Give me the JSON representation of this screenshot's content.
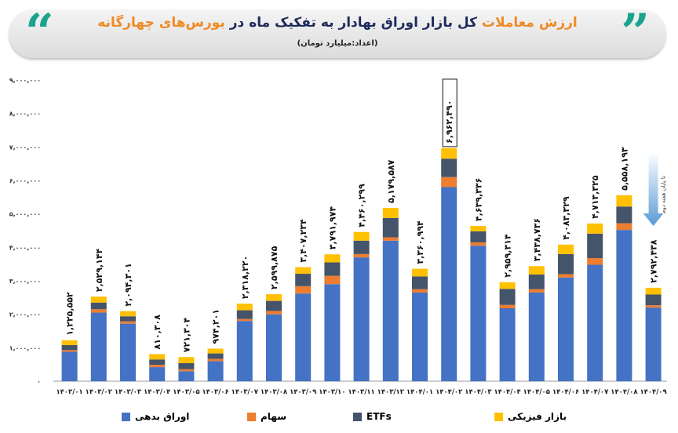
{
  "header": {
    "title_a": "ارزش معاملات",
    "title_b": "کل بازار اوراق بهادار به تفکیک ماه در",
    "title_c": "بورس‌های چهارگانه",
    "subtitle": "(اعداد:میلیارد تومان)",
    "quote_left": "“",
    "quote_right": "”"
  },
  "annotation": "تا پایان هفته دوم",
  "chart_data": {
    "type": "bar",
    "stacked": true,
    "title": "ارزش معاملات کل بازار اوراق بهادار به تفکیک ماه در بورس‌های چهارگانه",
    "unit": "میلیارد تومان",
    "ylim": [
      0,
      9000000
    ],
    "yticks": [
      "۰",
      "۱,۰۰۰,۰۰۰",
      "۲,۰۰۰,۰۰۰",
      "۳,۰۰۰,۰۰۰",
      "۴,۰۰۰,۰۰۰",
      "۵,۰۰۰,۰۰۰",
      "۶,۰۰۰,۰۰۰",
      "۷,۰۰۰,۰۰۰",
      "۸,۰۰۰,۰۰۰",
      "۹,۰۰۰,۰۰۰"
    ],
    "categories": [
      "۱۴۰۳/۰۱",
      "۱۴۰۳/۰۲",
      "۱۴۰۳/۰۳",
      "۱۴۰۳/۰۴",
      "۱۴۰۳/۰۵",
      "۱۴۰۳/۰۶",
      "۱۴۰۳/۰۷",
      "۱۴۰۳/۰۸",
      "۱۴۰۳/۰۹",
      "۱۴۰۳/۱۰",
      "۱۴۰۳/۱۱",
      "۱۴۰۳/۱۲",
      "۱۴۰۴/۰۱",
      "۱۴۰۴/۰۲",
      "۱۴۰۴/۰۳",
      "۱۴۰۴/۰۴",
      "۱۴۰۴/۰۵",
      "۱۴۰۴/۰۶",
      "۱۴۰۴/۰۷",
      "۱۴۰۴/۰۸",
      "۱۴۰۴/۰۹"
    ],
    "totals": [
      1225552,
      2529144,
      2094301,
      810308,
      721304,
      974201,
      2318220,
      2599875,
      3407234,
      3791974,
      4460299,
      5179587,
      3360994,
      6962490,
      4639336,
      2959314,
      3438736,
      4083329,
      4713325,
      5558193,
      2792438
    ],
    "total_labels": [
      "۱,۲۲۵,۵۵۲",
      "۲,۵۲۹,۱۴۴",
      "۲,۰۹۴,۳۰۱",
      "۸۱۰,۳۰۸",
      "۷۲۱,۳۰۴",
      "۹۷۴,۲۰۱",
      "۲,۳۱۸,۲۲۰",
      "۲,۵۹۹,۸۷۵",
      "۳,۴۰۷,۲۳۴",
      "۳,۷۹۱,۹۷۴",
      "۴,۴۶۰,۲۹۹",
      "۵,۱۷۹,۵۸۷",
      "۳,۳۶۰,۹۹۴",
      "۶,۹۶۲,۴۹۰",
      "۴,۶۳۹,۳۳۶",
      "۲,۹۵۹,۳۱۴",
      "۳,۴۳۸,۷۳۶",
      "۴,۰۸۳,۳۲۹",
      "۴,۷۱۳,۳۲۵",
      "۵,۵۵۸,۱۹۳",
      "۲,۷۹۲,۴۳۸"
    ],
    "highlight_index": 13,
    "series": [
      {
        "name": "اوراق بدهی",
        "color": "#4472C4",
        "values": [
          880000,
          2050000,
          1720000,
          420000,
          300000,
          600000,
          1800000,
          2000000,
          2620000,
          2900000,
          3700000,
          4200000,
          2650000,
          5800000,
          4050000,
          2180000,
          2650000,
          3100000,
          3480000,
          4520000,
          2200000
        ]
      },
      {
        "name": "سهام",
        "color": "#ED7D31",
        "values": [
          50000,
          100000,
          70000,
          70000,
          60000,
          70000,
          60000,
          100000,
          220000,
          250000,
          100000,
          100000,
          100000,
          300000,
          100000,
          100000,
          100000,
          100000,
          200000,
          200000,
          70000
        ]
      },
      {
        "name": "ETFs",
        "color": "#44546A",
        "values": [
          150000,
          200000,
          150000,
          160000,
          180000,
          160000,
          260000,
          300000,
          370000,
          400000,
          400000,
          580000,
          380000,
          550000,
          330000,
          480000,
          440000,
          600000,
          730000,
          500000,
          320000
        ]
      },
      {
        "name": "بازار فیزیکی",
        "color": "#FFC000",
        "values": [
          145552,
          179144,
          154301,
          160308,
          181304,
          144201,
          198220,
          199875,
          197234,
          241974,
          260299,
          299587,
          230994,
          312490,
          159336,
          199314,
          248736,
          283329,
          303325,
          338193,
          202438
        ]
      }
    ]
  }
}
